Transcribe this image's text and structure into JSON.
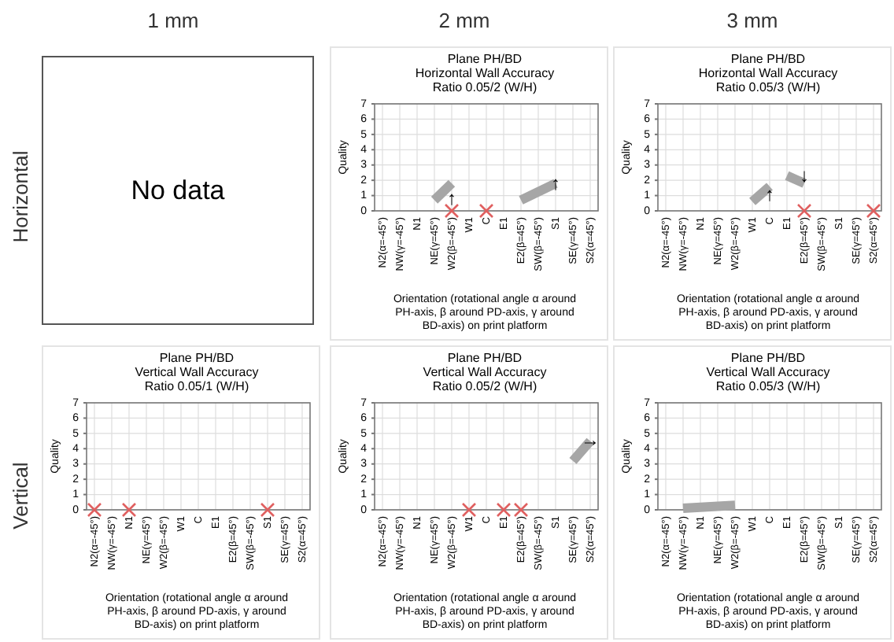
{
  "chart_data": [
    {
      "type": "other",
      "annotations": [
        "1 mm",
        "2 mm",
        "3 mm",
        "Horizontal",
        "Vertical"
      ]
    },
    {
      "type": "other",
      "annotations": [
        "No data"
      ]
    },
    {
      "type": "line",
      "title": "Plane PH/BD",
      "subtitle": "Horizontal Wall Accuracy\nRatio 0.05/2 (W/H)",
      "ylabel": "Quality",
      "xlabel": "Orientation (rotational angle α around\nPH-axis, β around PD-axis, γ around\nBD-axis) on print platform",
      "categories": [
        "N2(α=-45°)",
        "NW(γ=-45°)",
        "N1",
        "NE(γ=45°)",
        "W2(β=-45°)",
        "W1",
        "C",
        "E1",
        "E2(β=45°)",
        "SW(β=-45°)",
        "S1",
        "SE(γ=45°)",
        "S2(α=45°)"
      ],
      "ylim": [
        0,
        7
      ],
      "yticks": [
        0,
        1,
        2,
        3,
        4,
        5,
        6,
        7
      ],
      "grid": true,
      "series": [
        {
          "type": "line",
          "color": "#a6a6a6",
          "x": [
            "NE(γ=45°)",
            "W2(β=-45°)"
          ],
          "values": [
            0.7,
            1.8
          ]
        },
        {
          "type": "line",
          "color": "#a6a6a6",
          "x": [
            "E2(β=45°)",
            "S1"
          ],
          "values": [
            0.7,
            1.8
          ]
        },
        {
          "type": "scatter",
          "color": "#e06060",
          "marker": "cross",
          "x": [
            "W2(β=-45°)",
            "C"
          ],
          "values": [
            0,
            0
          ]
        }
      ],
      "annotations": [
        {
          "text": "↑",
          "x": "W2(β=-45°)",
          "y": 0.8
        },
        {
          "text": "↑",
          "x": "S1",
          "y": 1.8
        }
      ]
    },
    {
      "type": "line",
      "title": "Plane PH/BD",
      "subtitle": "Horizontal Wall Accuracy\nRatio 0.05/3 (W/H)",
      "ylabel": "Quality",
      "xlabel": "Orientation (rotational angle α around\nPH-axis, β around PD-axis, γ around\nBD-axis) on print platform",
      "categories": [
        "N2(α=-45°)",
        "NW(γ=-45°)",
        "N1",
        "NE(γ=45°)",
        "W2(β=-45°)",
        "W1",
        "C",
        "E1",
        "E2(β=45°)",
        "SW(β=-45°)",
        "S1",
        "SE(γ=45°)",
        "S2(α=45°)"
      ],
      "ylim": [
        0,
        7
      ],
      "yticks": [
        0,
        1,
        2,
        3,
        4,
        5,
        6,
        7
      ],
      "grid": true,
      "series": [
        {
          "type": "line",
          "color": "#a6a6a6",
          "x": [
            "W1",
            "C"
          ],
          "values": [
            0.6,
            1.6
          ]
        },
        {
          "type": "line",
          "color": "#a6a6a6",
          "x": [
            "E1",
            "E2(β=45°)"
          ],
          "values": [
            2.3,
            1.8
          ]
        },
        {
          "type": "scatter",
          "color": "#e06060",
          "marker": "cross",
          "x": [
            "E2(β=45°)",
            "S2(α=45°)"
          ],
          "values": [
            0,
            0
          ]
        }
      ],
      "annotations": [
        {
          "text": "↑",
          "x": "C",
          "y": 1.1
        },
        {
          "text": "↓",
          "x": "E2(β=45°)",
          "y": 2.3
        }
      ]
    },
    {
      "type": "line",
      "title": "Plane PH/BD",
      "subtitle": "Vertical Wall Accuracy\nRatio 0.05/1 (W/H)",
      "ylabel": "Quality",
      "xlabel": "Orientation (rotational angle α around\nPH-axis, β around PD-axis, γ around\nBD-axis) on print platform",
      "categories": [
        "N2(α=-45°)",
        "NW(γ=-45°)",
        "N1",
        "NE(γ=45°)",
        "W2(β=-45°)",
        "W1",
        "C",
        "E1",
        "E2(β=45°)",
        "SW(β=-45°)",
        "S1",
        "SE(γ=45°)",
        "S2(α=45°)"
      ],
      "ylim": [
        0,
        7
      ],
      "yticks": [
        0,
        1,
        2,
        3,
        4,
        5,
        6,
        7
      ],
      "grid": true,
      "series": [
        {
          "type": "scatter",
          "color": "#e06060",
          "marker": "cross",
          "x": [
            "N2(α=-45°)",
            "N1",
            "S1"
          ],
          "values": [
            0,
            0,
            0
          ]
        }
      ]
    },
    {
      "type": "line",
      "title": "Plane PH/BD",
      "subtitle": "Vertical Wall Accuracy\nRatio 0.05/2 (W/H)",
      "ylabel": "Quality",
      "xlabel": "Orientation (rotational angle α around\nPH-axis, β around PD-axis, γ around\nBD-axis) on print platform",
      "categories": [
        "N2(α=-45°)",
        "NW(γ=-45°)",
        "N1",
        "NE(γ=45°)",
        "W2(β=-45°)",
        "W1",
        "C",
        "E1",
        "E2(β=45°)",
        "SW(β=-45°)",
        "S1",
        "SE(γ=45°)",
        "S2(α=45°)"
      ],
      "ylim": [
        0,
        7
      ],
      "yticks": [
        0,
        1,
        2,
        3,
        4,
        5,
        6,
        7
      ],
      "grid": true,
      "series": [
        {
          "type": "line",
          "color": "#a6a6a6",
          "x": [
            "SE(γ=45°)",
            "S2(α=45°)"
          ],
          "values": [
            3.2,
            4.5
          ]
        },
        {
          "type": "scatter",
          "color": "#e06060",
          "marker": "cross",
          "x": [
            "W1",
            "E1",
            "E2(β=45°)"
          ],
          "values": [
            0,
            0,
            0
          ]
        }
      ],
      "annotations": [
        {
          "text": "→",
          "x": "S2(α=45°)",
          "y": 4.6
        }
      ]
    },
    {
      "type": "line",
      "title": "Plane PH/BD",
      "subtitle": "Vertical Wall Accuracy\nRatio 0.05/3 (W/H)",
      "ylabel": "Quality",
      "xlabel": "Orientation (rotational angle α around\nPH-axis, β around PD-axis, γ around\nBD-axis) on print platform",
      "categories": [
        "N2(α=-45°)",
        "NW(γ=-45°)",
        "N1",
        "NE(γ=45°)",
        "W2(β=-45°)",
        "W1",
        "C",
        "E1",
        "E2(β=45°)",
        "SW(β=-45°)",
        "S1",
        "SE(γ=45°)",
        "S2(α=45°)"
      ],
      "ylim": [
        0,
        7
      ],
      "yticks": [
        0,
        1,
        2,
        3,
        4,
        5,
        6,
        7
      ],
      "grid": true,
      "series": [
        {
          "type": "line",
          "color": "#a6a6a6",
          "x": [
            "NW(γ=-45°)",
            "W2(β=-45°)"
          ],
          "values": [
            0.1,
            0.3
          ]
        }
      ]
    }
  ]
}
